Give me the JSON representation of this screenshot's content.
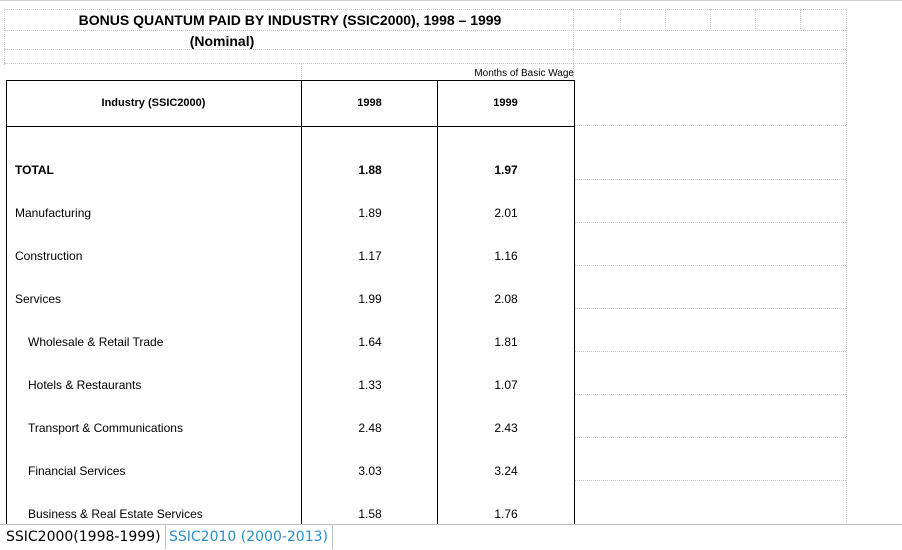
{
  "sheet": {
    "title_line1": "BONUS QUANTUM PAID BY INDUSTRY (SSIC2000), 1998 – 1999",
    "title_line2": "(Nominal)",
    "unit_label": "Months of Basic Wage",
    "headers": {
      "industry": "Industry (SSIC2000)",
      "y1998": "1998",
      "y1999": "1999"
    },
    "rows": [
      {
        "name": "TOTAL",
        "v1998": "1.88",
        "v1999": "1.97"
      },
      {
        "name": "Manufacturing",
        "v1998": "1.89",
        "v1999": "2.01"
      },
      {
        "name": "Construction",
        "v1998": "1.17",
        "v1999": "1.16"
      },
      {
        "name": "Services",
        "v1998": "1.99",
        "v1999": "2.08"
      },
      {
        "name": "Wholesale & Retail Trade",
        "v1998": "1.64",
        "v1999": "1.81"
      },
      {
        "name": "Hotels & Restaurants",
        "v1998": "1.33",
        "v1999": "1.07"
      },
      {
        "name": "Transport & Communications",
        "v1998": "2.48",
        "v1999": "2.43"
      },
      {
        "name": "Financial Services",
        "v1998": "3.03",
        "v1999": "3.24"
      },
      {
        "name": "Business & Real Estate Services",
        "v1998": "1.58",
        "v1999": "1.76"
      }
    ]
  },
  "tabs": [
    {
      "label": "SSIC2000(1998-1999)",
      "active": true
    },
    {
      "label": "SSIC2010 (2000-2013)",
      "active": false
    }
  ],
  "colors": {
    "tab_inactive": "#2a8fc8",
    "grid": "#c8c8c8"
  }
}
